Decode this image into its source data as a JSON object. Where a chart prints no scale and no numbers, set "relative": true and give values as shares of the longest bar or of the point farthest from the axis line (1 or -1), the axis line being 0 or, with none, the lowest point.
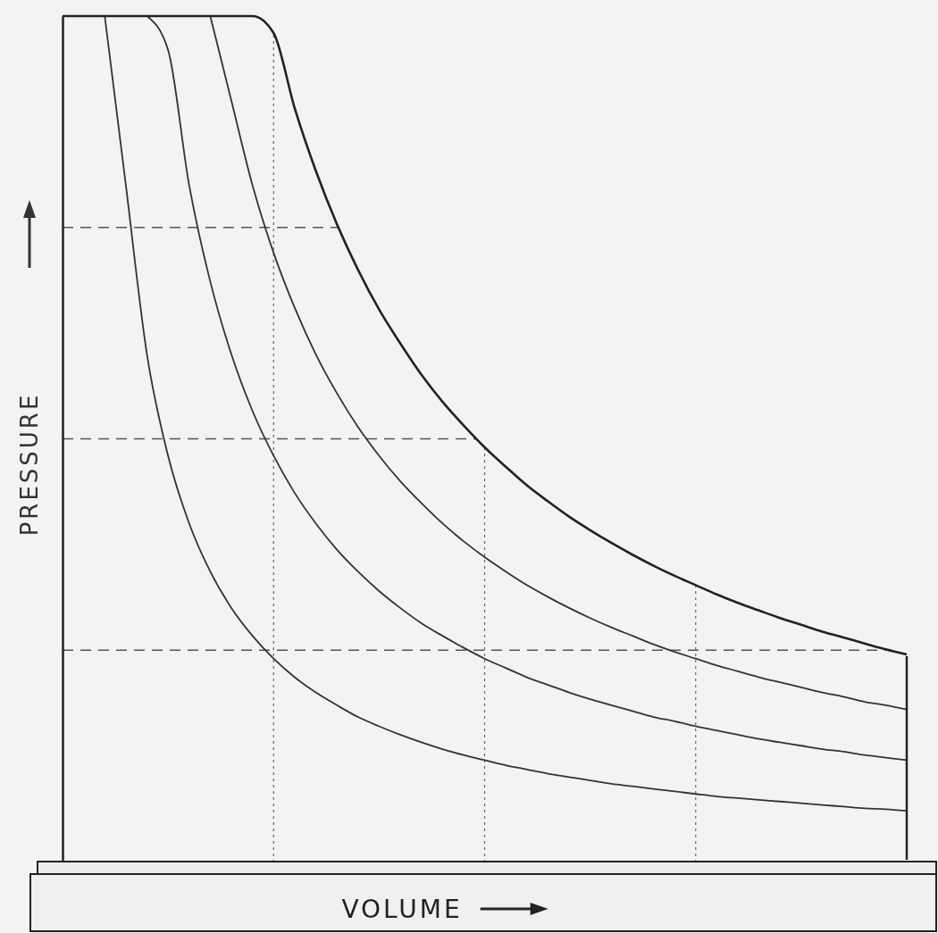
{
  "chart_data": {
    "type": "line",
    "xlabel": "VOLUME",
    "ylabel": "PRESSURE",
    "relative": true,
    "grid": true,
    "categories": [
      null,
      null,
      null,
      null,
      null,
      null,
      null,
      null,
      null,
      null,
      null,
      null,
      null,
      null,
      null,
      null,
      null,
      null,
      null,
      null,
      null,
      null,
      null,
      null,
      null,
      null,
      null,
      null,
      null,
      null,
      null,
      null,
      null,
      null,
      null,
      null,
      null,
      null,
      null,
      null,
      null
    ],
    "series": [
      {
        "color": "#333333",
        "values": [
          null,
          null,
          1,
          0.8,
          0.6,
          0.48,
          0.4,
          0.343,
          0.3,
          0.267,
          0.24,
          0.218,
          0.2,
          0.185,
          0.171,
          0.16,
          0.15,
          0.141,
          0.133,
          0.126,
          0.12,
          0.114,
          0.109,
          0.104,
          0.1,
          0.096,
          0.092,
          0.089,
          0.086,
          0.083,
          0.08,
          0.077,
          0.075,
          0.073,
          0.071,
          0.069,
          0.067,
          0.065,
          0.063,
          0.062,
          0.06
        ]
      },
      {
        "color": "#333333",
        "values": [
          null,
          null,
          null,
          null,
          1,
          0.96,
          0.8,
          0.686,
          0.6,
          0.533,
          0.48,
          0.436,
          0.4,
          0.369,
          0.343,
          0.32,
          0.3,
          0.282,
          0.267,
          0.253,
          0.24,
          0.229,
          0.218,
          0.209,
          0.2,
          0.192,
          0.185,
          0.178,
          0.171,
          0.166,
          0.16,
          0.155,
          0.15,
          0.145,
          0.141,
          0.137,
          0.133,
          0.13,
          0.126,
          0.123,
          0.12
        ]
      },
      {
        "color": "#333333",
        "values": [
          null,
          null,
          null,
          null,
          null,
          null,
          null,
          1,
          0.9,
          0.8,
          0.72,
          0.655,
          0.6,
          0.554,
          0.514,
          0.48,
          0.45,
          0.424,
          0.4,
          0.379,
          0.36,
          0.343,
          0.327,
          0.313,
          0.3,
          0.288,
          0.277,
          0.267,
          0.257,
          0.248,
          0.24,
          0.232,
          0.225,
          0.218,
          0.212,
          0.206,
          0.2,
          0.195,
          0.189,
          0.185,
          0.18
        ]
      },
      {
        "color": "#222222",
        "values": [
          1,
          1,
          1,
          1,
          1,
          1,
          1,
          1,
          1,
          1,
          0.98,
          0.891,
          0.817,
          0.754,
          0.7,
          0.653,
          0.613,
          0.576,
          0.544,
          0.516,
          0.49,
          0.467,
          0.445,
          0.426,
          0.408,
          0.392,
          0.377,
          0.363,
          0.35,
          0.338,
          0.327,
          0.316,
          0.306,
          0.297,
          0.288,
          0.28,
          0.272,
          0.265,
          0.258,
          0.251,
          0.245
        ]
      }
    ]
  }
}
